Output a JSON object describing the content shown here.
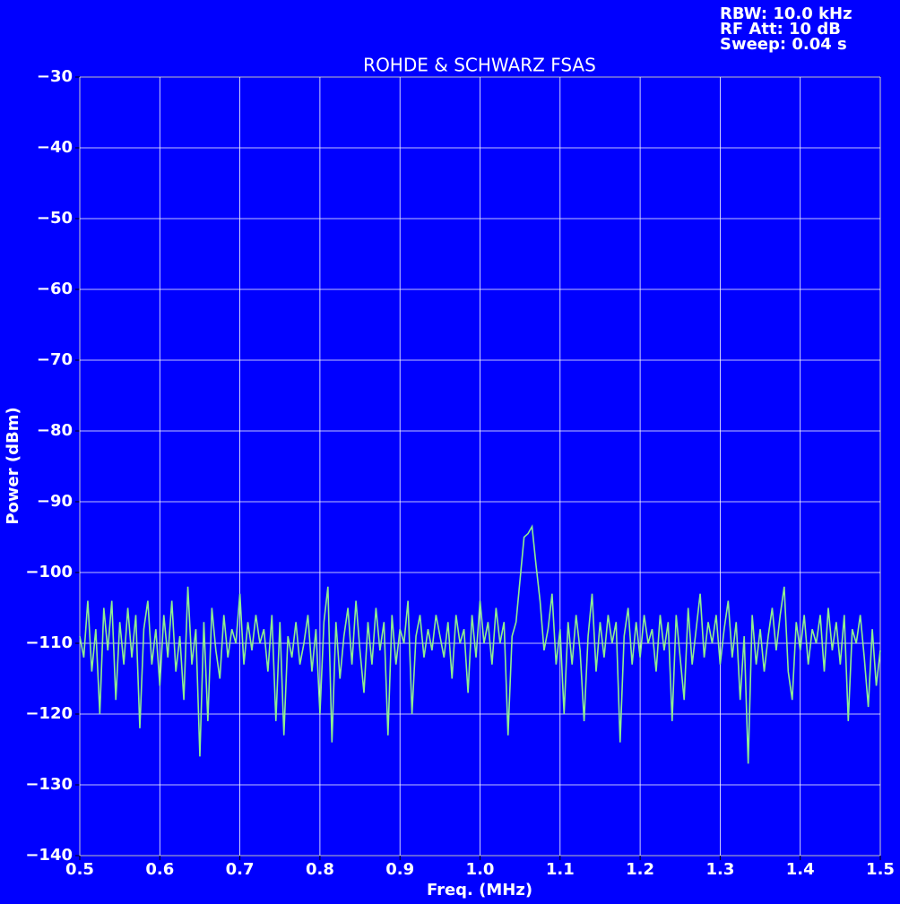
{
  "chart_data": {
    "type": "line",
    "title": "ROHDE & SCHWARZ FSAS",
    "annotations": [
      "RBW: 10.0 kHz",
      "RF Att: 10 dB",
      "Sweep: 0.04 s"
    ],
    "x_label": "Freq. (MHz)",
    "y_label": "Power (dBm)",
    "color": "#90ee90",
    "background": "#0000ff",
    "grid": true,
    "xlim": [
      0.5,
      1.5
    ],
    "ylim": [
      -140,
      -30
    ],
    "xticks": [
      0.5,
      0.6,
      0.7,
      0.8,
      0.9,
      {
        "value": 1,
        "label": "1.0"
      },
      1.1,
      1.2,
      1.3,
      1.4,
      1.5
    ],
    "yticks": [
      {
        "value": -140,
        "label": "−140"
      },
      {
        "value": -130,
        "label": "−130"
      },
      {
        "value": -120,
        "label": "−120"
      },
      {
        "value": -110,
        "label": "−110"
      },
      {
        "value": -100,
        "label": "−100"
      },
      {
        "value": -90,
        "label": "−90"
      },
      {
        "value": -80,
        "label": "−80"
      },
      {
        "value": -70,
        "label": "−70"
      },
      {
        "value": -60,
        "label": "−60"
      },
      {
        "value": -50,
        "label": "−50"
      },
      {
        "value": -40,
        "label": "−40"
      },
      {
        "value": -30,
        "label": "−30"
      }
    ],
    "x": [
      0.5,
      0.505,
      0.51,
      0.515,
      0.52,
      0.525,
      0.53,
      0.535,
      0.54,
      0.545,
      0.55,
      0.555,
      0.56,
      0.565,
      0.57,
      0.575,
      0.58,
      0.585,
      0.59,
      0.595,
      0.6,
      0.605,
      0.61,
      0.615,
      0.62,
      0.625,
      0.63,
      0.635,
      0.64,
      0.645,
      0.65,
      0.655,
      0.66,
      0.665,
      0.67,
      0.675,
      0.68,
      0.685,
      0.69,
      0.695,
      0.7,
      0.705,
      0.71,
      0.715,
      0.72,
      0.725,
      0.73,
      0.735,
      0.74,
      0.745,
      0.75,
      0.755,
      0.76,
      0.765,
      0.77,
      0.775,
      0.78,
      0.785,
      0.79,
      0.795,
      0.8,
      0.805,
      0.81,
      0.815,
      0.82,
      0.825,
      0.83,
      0.835,
      0.84,
      0.845,
      0.85,
      0.855,
      0.86,
      0.865,
      0.87,
      0.875,
      0.88,
      0.885,
      0.89,
      0.895,
      0.9,
      0.905,
      0.91,
      0.915,
      0.92,
      0.925,
      0.93,
      0.935,
      0.94,
      0.945,
      0.95,
      0.955,
      0.96,
      0.965,
      0.97,
      0.975,
      0.98,
      0.985,
      0.99,
      0.995,
      1.0,
      1.005,
      1.01,
      1.015,
      1.02,
      1.025,
      1.03,
      1.035,
      1.04,
      1.045,
      1.05,
      1.055,
      1.06,
      1.065,
      1.07,
      1.075,
      1.08,
      1.085,
      1.09,
      1.095,
      1.1,
      1.105,
      1.11,
      1.115,
      1.12,
      1.125,
      1.13,
      1.135,
      1.14,
      1.145,
      1.15,
      1.155,
      1.16,
      1.165,
      1.17,
      1.175,
      1.18,
      1.185,
      1.19,
      1.195,
      1.2,
      1.205,
      1.21,
      1.215,
      1.22,
      1.225,
      1.23,
      1.235,
      1.24,
      1.245,
      1.25,
      1.255,
      1.26,
      1.265,
      1.27,
      1.275,
      1.28,
      1.285,
      1.29,
      1.295,
      1.3,
      1.305,
      1.31,
      1.315,
      1.32,
      1.325,
      1.33,
      1.335,
      1.34,
      1.345,
      1.35,
      1.355,
      1.36,
      1.365,
      1.37,
      1.375,
      1.38,
      1.385,
      1.39,
      1.395,
      1.4,
      1.405,
      1.41,
      1.415,
      1.42,
      1.425,
      1.43,
      1.435,
      1.44,
      1.445,
      1.45,
      1.455,
      1.46,
      1.465,
      1.47,
      1.475,
      1.48,
      1.485,
      1.49,
      1.495,
      1.5
    ],
    "values": [
      -109,
      -112,
      -104,
      -114,
      -108,
      -120,
      -105,
      -111,
      -104,
      -118,
      -107,
      -113,
      -105,
      -112,
      -106,
      -122,
      -108,
      -104,
      -113,
      -108,
      -116,
      -106,
      -112,
      -104,
      -114,
      -109,
      -118,
      -102,
      -113,
      -108,
      -126,
      -107,
      -121,
      -105,
      -111,
      -115,
      -106,
      -112,
      -108,
      -110,
      -103,
      -113,
      -107,
      -111,
      -106,
      -110,
      -108,
      -114,
      -106,
      -121,
      -107,
      -123,
      -109,
      -112,
      -107,
      -113,
      -110,
      -106,
      -114,
      -108,
      -120,
      -107,
      -102,
      -124,
      -107,
      -115,
      -109,
      -105,
      -113,
      -104,
      -111,
      -117,
      -107,
      -113,
      -105,
      -111,
      -107,
      -123,
      -106,
      -113,
      -108,
      -110,
      -104,
      -120,
      -109,
      -106,
      -112,
      -108,
      -111,
      -106,
      -109,
      -112,
      -107,
      -115,
      -106,
      -110,
      -108,
      -117,
      -106,
      -112,
      -104,
      -110,
      -107,
      -113,
      -105,
      -110,
      -107,
      -123,
      -109,
      -107,
      -101,
      -95,
      -94.5,
      -93.5,
      -99,
      -104,
      -111,
      -108,
      -103,
      -113,
      -108,
      -120,
      -107,
      -113,
      -106,
      -111,
      -121,
      -109,
      -103,
      -114,
      -107,
      -112,
      -106,
      -110,
      -107,
      -124,
      -109,
      -105,
      -113,
      -107,
      -112,
      -106,
      -110,
      -108,
      -114,
      -106,
      -111,
      -107,
      -121,
      -106,
      -112,
      -118,
      -105,
      -113,
      -108,
      -103,
      -112,
      -107,
      -110,
      -106,
      -113,
      -108,
      -104,
      -112,
      -107,
      -118,
      -109,
      -127,
      -106,
      -113,
      -108,
      -114,
      -109,
      -105,
      -111,
      -106,
      -102,
      -114,
      -118,
      -107,
      -111,
      -106,
      -113,
      -108,
      -110,
      -106,
      -114,
      -105,
      -111,
      -107,
      -113,
      -106,
      -121,
      -108,
      -110,
      -106,
      -112,
      -119,
      -108,
      -116,
      -111
    ]
  }
}
